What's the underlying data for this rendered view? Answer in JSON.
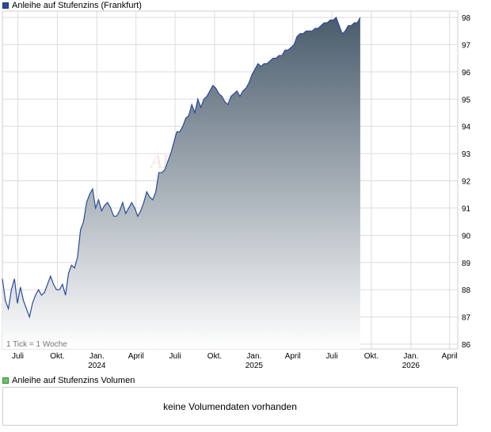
{
  "chart_data": {
    "type": "area",
    "title": "Anleihe auf Stufenzins (Frankfurt)",
    "note": "1 Tick = 1 Woche",
    "watermark": "AKTI",
    "ylim": [
      86,
      98
    ],
    "yticks": [
      86,
      87,
      88,
      89,
      90,
      91,
      92,
      93,
      94,
      95,
      96,
      97,
      98
    ],
    "xlim": [
      "2023-05-26",
      "2026-04-20"
    ],
    "xticks": [
      {
        "date": "2023-07-01",
        "label": "Juli",
        "year": ""
      },
      {
        "date": "2023-10-01",
        "label": "Okt.",
        "year": ""
      },
      {
        "date": "2024-01-01",
        "label": "Jan.",
        "year": "2024"
      },
      {
        "date": "2024-04-01",
        "label": "April",
        "year": ""
      },
      {
        "date": "2024-07-01",
        "label": "Juli",
        "year": ""
      },
      {
        "date": "2024-10-01",
        "label": "Okt.",
        "year": ""
      },
      {
        "date": "2025-01-01",
        "label": "Jan.",
        "year": "2025"
      },
      {
        "date": "2025-04-01",
        "label": "April",
        "year": ""
      },
      {
        "date": "2025-07-01",
        "label": "Juli",
        "year": ""
      },
      {
        "date": "2025-10-01",
        "label": "Okt.",
        "year": ""
      },
      {
        "date": "2026-01-01",
        "label": "Jan.",
        "year": "2026"
      },
      {
        "date": "2026-04-01",
        "label": "April",
        "year": ""
      }
    ],
    "grid": true,
    "colors": {
      "line": "#2a4a9a",
      "area_top": "#4a5c6c",
      "area_bottom": "#ffffff",
      "grid": "#dcdcdc"
    },
    "series": [
      {
        "name": "Anleihe auf Stufenzins",
        "points": [
          [
            "2023-05-26",
            88.4
          ],
          [
            "2023-06-02",
            87.6
          ],
          [
            "2023-06-09",
            87.3
          ],
          [
            "2023-06-16",
            88.0
          ],
          [
            "2023-06-23",
            88.4
          ],
          [
            "2023-06-30",
            87.5
          ],
          [
            "2023-07-07",
            88.1
          ],
          [
            "2023-07-14",
            87.6
          ],
          [
            "2023-07-21",
            87.3
          ],
          [
            "2023-07-28",
            87.0
          ],
          [
            "2023-08-04",
            87.5
          ],
          [
            "2023-08-11",
            87.8
          ],
          [
            "2023-08-18",
            88.0
          ],
          [
            "2023-08-25",
            87.8
          ],
          [
            "2023-09-01",
            87.9
          ],
          [
            "2023-09-08",
            88.2
          ],
          [
            "2023-09-15",
            88.5
          ],
          [
            "2023-09-22",
            88.2
          ],
          [
            "2023-09-29",
            88.0
          ],
          [
            "2023-10-06",
            88.0
          ],
          [
            "2023-10-13",
            88.2
          ],
          [
            "2023-10-20",
            87.8
          ],
          [
            "2023-10-27",
            88.6
          ],
          [
            "2023-11-03",
            88.9
          ],
          [
            "2023-11-10",
            88.8
          ],
          [
            "2023-11-17",
            89.2
          ],
          [
            "2023-11-24",
            90.2
          ],
          [
            "2023-12-01",
            90.5
          ],
          [
            "2023-12-08",
            91.2
          ],
          [
            "2023-12-15",
            91.5
          ],
          [
            "2023-12-22",
            91.7
          ],
          [
            "2023-12-29",
            91.0
          ],
          [
            "2024-01-05",
            91.3
          ],
          [
            "2024-01-12",
            90.9
          ],
          [
            "2024-01-19",
            91.1
          ],
          [
            "2024-01-26",
            91.2
          ],
          [
            "2024-02-02",
            91.0
          ],
          [
            "2024-02-09",
            90.7
          ],
          [
            "2024-02-16",
            90.7
          ],
          [
            "2024-02-23",
            90.9
          ],
          [
            "2024-03-01",
            91.2
          ],
          [
            "2024-03-08",
            90.8
          ],
          [
            "2024-03-15",
            91.0
          ],
          [
            "2024-03-22",
            91.2
          ],
          [
            "2024-03-29",
            91.0
          ],
          [
            "2024-04-05",
            90.7
          ],
          [
            "2024-04-12",
            90.9
          ],
          [
            "2024-04-19",
            91.2
          ],
          [
            "2024-04-26",
            91.6
          ],
          [
            "2024-05-03",
            91.4
          ],
          [
            "2024-05-10",
            91.3
          ],
          [
            "2024-05-17",
            91.6
          ],
          [
            "2024-05-24",
            92.3
          ],
          [
            "2024-05-31",
            92.3
          ],
          [
            "2024-06-07",
            92.4
          ],
          [
            "2024-06-14",
            92.7
          ],
          [
            "2024-06-21",
            93.0
          ],
          [
            "2024-06-28",
            93.4
          ],
          [
            "2024-07-05",
            93.8
          ],
          [
            "2024-07-12",
            93.8
          ],
          [
            "2024-07-19",
            94.0
          ],
          [
            "2024-07-26",
            94.3
          ],
          [
            "2024-08-02",
            94.4
          ],
          [
            "2024-08-09",
            94.8
          ],
          [
            "2024-08-16",
            94.5
          ],
          [
            "2024-08-23",
            95.0
          ],
          [
            "2024-08-30",
            94.7
          ],
          [
            "2024-09-06",
            95.0
          ],
          [
            "2024-09-13",
            95.1
          ],
          [
            "2024-09-20",
            95.3
          ],
          [
            "2024-09-27",
            95.5
          ],
          [
            "2024-10-04",
            95.4
          ],
          [
            "2024-10-11",
            95.2
          ],
          [
            "2024-10-18",
            95.1
          ],
          [
            "2024-10-25",
            94.9
          ],
          [
            "2024-11-01",
            94.8
          ],
          [
            "2024-11-08",
            95.1
          ],
          [
            "2024-11-15",
            95.2
          ],
          [
            "2024-11-22",
            95.3
          ],
          [
            "2024-11-29",
            95.1
          ],
          [
            "2024-12-06",
            95.3
          ],
          [
            "2024-12-13",
            95.4
          ],
          [
            "2024-12-20",
            95.6
          ],
          [
            "2024-12-27",
            95.9
          ],
          [
            "2025-01-03",
            96.1
          ],
          [
            "2025-01-10",
            96.3
          ],
          [
            "2025-01-17",
            96.2
          ],
          [
            "2025-01-24",
            96.3
          ],
          [
            "2025-01-31",
            96.3
          ],
          [
            "2025-02-07",
            96.4
          ],
          [
            "2025-02-14",
            96.5
          ],
          [
            "2025-02-21",
            96.5
          ],
          [
            "2025-02-28",
            96.6
          ],
          [
            "2025-03-07",
            96.6
          ],
          [
            "2025-03-14",
            96.8
          ],
          [
            "2025-03-21",
            96.8
          ],
          [
            "2025-03-28",
            96.9
          ],
          [
            "2025-04-04",
            97.0
          ],
          [
            "2025-04-11",
            97.3
          ],
          [
            "2025-04-18",
            97.4
          ],
          [
            "2025-04-25",
            97.4
          ],
          [
            "2025-05-02",
            97.5
          ],
          [
            "2025-05-09",
            97.5
          ],
          [
            "2025-05-16",
            97.5
          ],
          [
            "2025-05-23",
            97.6
          ],
          [
            "2025-05-30",
            97.6
          ],
          [
            "2025-06-06",
            97.7
          ],
          [
            "2025-06-13",
            97.8
          ],
          [
            "2025-06-20",
            97.8
          ],
          [
            "2025-06-27",
            97.9
          ],
          [
            "2025-07-04",
            97.9
          ],
          [
            "2025-07-11",
            98.0
          ],
          [
            "2025-07-18",
            97.7
          ],
          [
            "2025-07-25",
            97.4
          ],
          [
            "2025-08-01",
            97.5
          ],
          [
            "2025-08-08",
            97.7
          ],
          [
            "2025-08-15",
            97.7
          ],
          [
            "2025-08-22",
            97.8
          ],
          [
            "2025-08-29",
            97.8
          ],
          [
            "2025-09-05",
            98.0
          ]
        ]
      }
    ]
  },
  "volume_legend": "Anleihe auf Stufenzins Volumen",
  "volume_message": "keine Volumendaten vorhanden"
}
